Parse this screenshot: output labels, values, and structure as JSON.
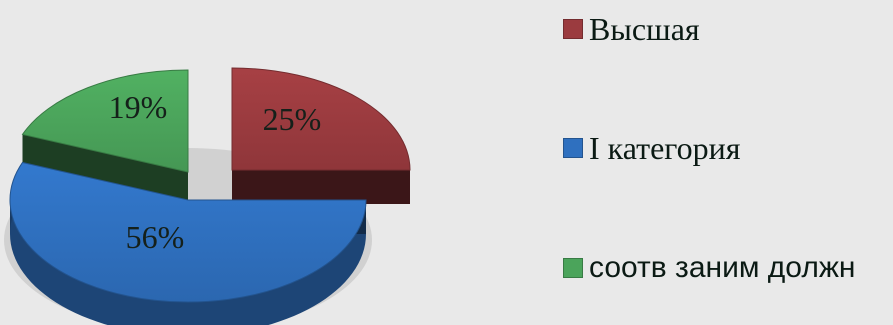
{
  "chart_data": {
    "type": "pie",
    "categories": [
      "Высшая",
      "I категория",
      "соотв заним должн"
    ],
    "values": [
      25,
      56,
      19
    ],
    "labels": [
      "25%",
      "56%",
      "19%"
    ],
    "title": "",
    "legend_position": "right",
    "colors": [
      "#9b3b3f",
      "#2f70bf",
      "#4ba45b"
    ]
  }
}
